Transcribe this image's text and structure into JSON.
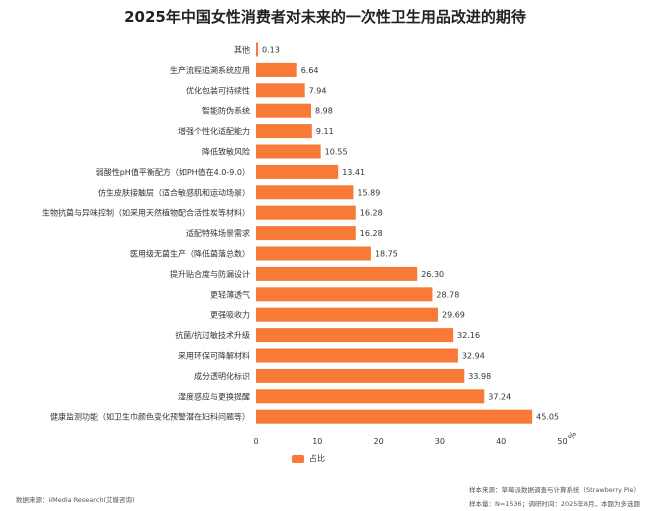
{
  "chart_data": {
    "type": "bar",
    "orientation": "horizontal",
    "title": "2025年中国女性消费者对未来的一次性卫生用品改进的期待",
    "categories": [
      "其他",
      "生产流程追溯系统应用",
      "优化包装可持续性",
      "智能防伪系统",
      "增强个性化适配能力",
      "降低致敏风险",
      "弱酸性pH值平衡配方（如PH值在4.0-9.0）",
      "仿生皮肤接触层（适合敏感肌和运动场景）",
      "生物抗菌与异味控制（如采用天然植物配合活性炭等材料）",
      "适配特殊场景需求",
      "医用级无菌生产（降低菌落总数）",
      "提升贴合度与防漏设计",
      "更轻薄透气",
      "更强吸收力",
      "抗菌/抗过敏技术升级",
      "采用环保可降解材料",
      "成分透明化标识",
      "湿度感应与更换提醒",
      "健康监测功能（如卫生巾颜色变化预警潜在妇科问题等）"
    ],
    "series": [
      {
        "name": "占比",
        "values": [
          0.13,
          6.64,
          7.94,
          8.98,
          9.11,
          10.55,
          13.41,
          15.89,
          16.28,
          16.28,
          18.75,
          26.3,
          28.78,
          29.69,
          32.16,
          32.94,
          33.98,
          37.24,
          45.05
        ],
        "labels": [
          "0.13",
          "6.64",
          "7.94",
          "8.98",
          "9.11",
          "10.55",
          "13.41",
          "15.89",
          "16.28",
          "16.28",
          "18.75",
          "26.30",
          "28.78",
          "29.69",
          "32.16",
          "32.94",
          "33.98",
          "37.24",
          "45.05"
        ]
      }
    ],
    "xlim": [
      0,
      50
    ],
    "xticks": [
      "0",
      "10",
      "20",
      "30",
      "40",
      "50"
    ],
    "x_unit": "%",
    "grid": false,
    "legend_position": "bottom",
    "bar_color": "#F97A37"
  },
  "footer": {
    "sample_source": "样本来源：草莓派数据调查与计算系统（Strawberry Pie）",
    "sample_info": "样本量：N=1536；调研时间：2025年8月，本题为多选题",
    "data_source": "数据来源：iiMedia Research(艾媒咨询)"
  }
}
